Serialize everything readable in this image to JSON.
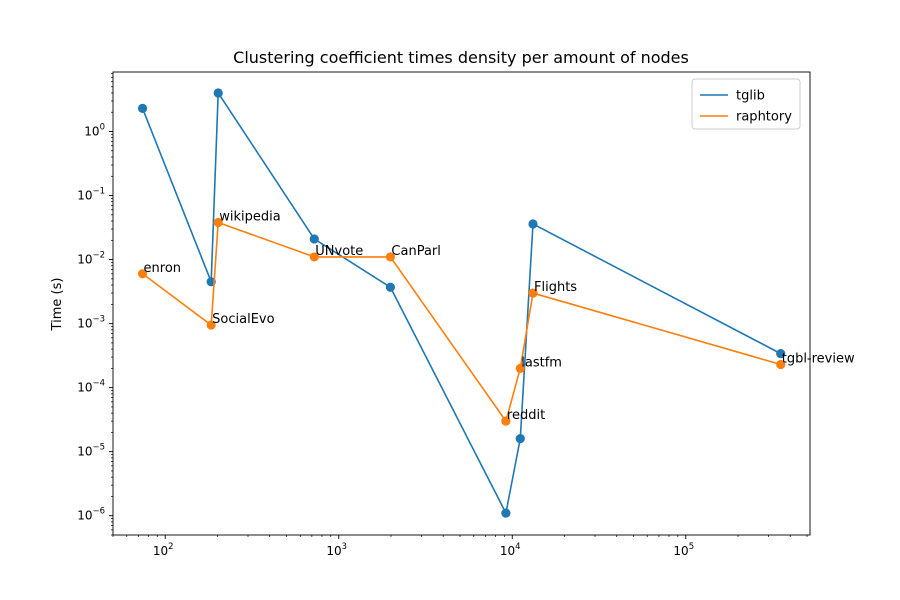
{
  "chart_data": {
    "type": "line",
    "title": "Clustering coefficient times density per amount of nodes",
    "xlabel": "",
    "ylabel": "Time (s)",
    "xscale": "log",
    "yscale": "log",
    "xlim": [
      50,
      520000
    ],
    "ylim": [
      5e-07,
      8.5
    ],
    "grid": false,
    "legend_position": "top-right",
    "x_ticks": [
      {
        "value": 100,
        "base": "10",
        "exp": "2"
      },
      {
        "value": 1000,
        "base": "10",
        "exp": "3"
      },
      {
        "value": 10000,
        "base": "10",
        "exp": "4"
      },
      {
        "value": 100000,
        "base": "10",
        "exp": "5"
      }
    ],
    "y_ticks": [
      {
        "value": 1e-06,
        "base": "10",
        "exp": "−6"
      },
      {
        "value": 1e-05,
        "base": "10",
        "exp": "−5"
      },
      {
        "value": 0.0001,
        "base": "10",
        "exp": "−4"
      },
      {
        "value": 0.001,
        "base": "10",
        "exp": "−3"
      },
      {
        "value": 0.01,
        "base": "10",
        "exp": "−2"
      },
      {
        "value": 0.1,
        "base": "10",
        "exp": "−1"
      },
      {
        "value": 1,
        "base": "10",
        "exp": "0"
      }
    ],
    "series": [
      {
        "name": "tglib",
        "color": "#1f77b4",
        "points": [
          {
            "x": 74,
            "y": 2.3
          },
          {
            "x": 184,
            "y": 0.0045
          },
          {
            "x": 202,
            "y": 4.0
          },
          {
            "x": 723,
            "y": 0.021
          },
          {
            "x": 1985,
            "y": 0.0037
          },
          {
            "x": 9191,
            "y": 1.1e-06
          },
          {
            "x": 11124,
            "y": 1.6e-05
          },
          {
            "x": 13170,
            "y": 0.036
          },
          {
            "x": 352637,
            "y": 0.00034
          }
        ]
      },
      {
        "name": "raphtory",
        "color": "#ff7f0e",
        "points": [
          {
            "x": 74,
            "y": 0.006
          },
          {
            "x": 184,
            "y": 0.00095
          },
          {
            "x": 202,
            "y": 0.038
          },
          {
            "x": 723,
            "y": 0.011
          },
          {
            "x": 1985,
            "y": 0.011
          },
          {
            "x": 9191,
            "y": 3e-05
          },
          {
            "x": 11124,
            "y": 0.0002
          },
          {
            "x": 13170,
            "y": 0.003
          },
          {
            "x": 352637,
            "y": 0.00023
          }
        ]
      }
    ],
    "annotations": [
      {
        "text": "enron",
        "x": 74,
        "y": 0.006
      },
      {
        "text": "SocialEvo",
        "x": 184,
        "y": 0.00095
      },
      {
        "text": "wikipedia",
        "x": 202,
        "y": 0.038
      },
      {
        "text": "UNvote",
        "x": 723,
        "y": 0.011
      },
      {
        "text": "CanParl",
        "x": 1985,
        "y": 0.011
      },
      {
        "text": "reddit",
        "x": 9191,
        "y": 3e-05
      },
      {
        "text": "lastfm",
        "x": 11124,
        "y": 0.0002
      },
      {
        "text": "Flights",
        "x": 13170,
        "y": 0.003
      },
      {
        "text": "tgbl-review",
        "x": 352637,
        "y": 0.00023
      }
    ]
  }
}
